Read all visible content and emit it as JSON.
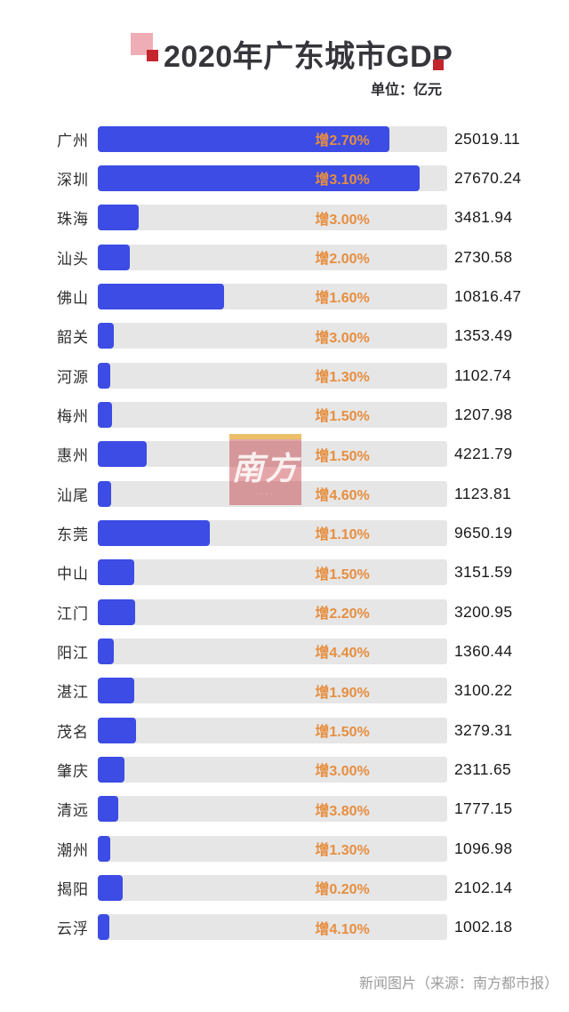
{
  "header": {
    "title": "2020年广东城市GDP",
    "unit_label": "单位：亿元"
  },
  "watermark": {
    "text": "南方"
  },
  "footer": {
    "caption": "新闻图片（来源：南方都市报）"
  },
  "colors": {
    "bar_blue": "#3c4ce4",
    "track_gray": "#e6e6e6",
    "growth_orange": "#e78e3f",
    "accent_red": "#c3242e",
    "accent_pink": "#efaeb5",
    "title_dark": "#35353b",
    "footer_gray": "#9c9c9c"
  },
  "chart_data": {
    "type": "bar",
    "orientation": "horizontal",
    "title": "2020年广东城市GDP",
    "unit": "亿元",
    "xlim": [
      0,
      30000
    ],
    "grid": false,
    "legend": false,
    "categories": [
      "广州",
      "深圳",
      "珠海",
      "汕头",
      "佛山",
      "韶关",
      "河源",
      "梅州",
      "惠州",
      "汕尾",
      "东莞",
      "中山",
      "江门",
      "阳江",
      "湛江",
      "茂名",
      "肇庆",
      "清远",
      "潮州",
      "揭阳",
      "云浮"
    ],
    "values": [
      25019.11,
      27670.24,
      3481.94,
      2730.58,
      10816.47,
      1353.49,
      1102.74,
      1207.98,
      4221.79,
      1123.81,
      9650.19,
      3151.59,
      3200.95,
      1360.44,
      3100.22,
      3279.31,
      2311.65,
      1777.15,
      1096.98,
      2102.14,
      1002.18
    ],
    "value_labels": [
      "25019.11",
      "27670.24",
      "3481.94",
      "2730.58",
      "10816.47",
      "1353.49",
      "1102.74",
      "1207.98",
      "4221.79",
      "1123.81",
      "9650.19",
      "3151.59",
      "3200.95",
      "1360.44",
      "3100.22",
      "3279.31",
      "2311.65",
      "1777.15",
      "1096.98",
      "2102.14",
      "1002.18"
    ],
    "growth_labels": [
      "增2.70%",
      "增3.10%",
      "增3.00%",
      "增2.00%",
      "增1.60%",
      "增3.00%",
      "增1.30%",
      "增1.50%",
      "增1.50%",
      "增4.60%",
      "增1.10%",
      "增1.50%",
      "增2.20%",
      "增4.40%",
      "增1.90%",
      "增1.50%",
      "增3.00%",
      "增3.80%",
      "增1.30%",
      "增0.20%",
      "增4.10%"
    ]
  }
}
